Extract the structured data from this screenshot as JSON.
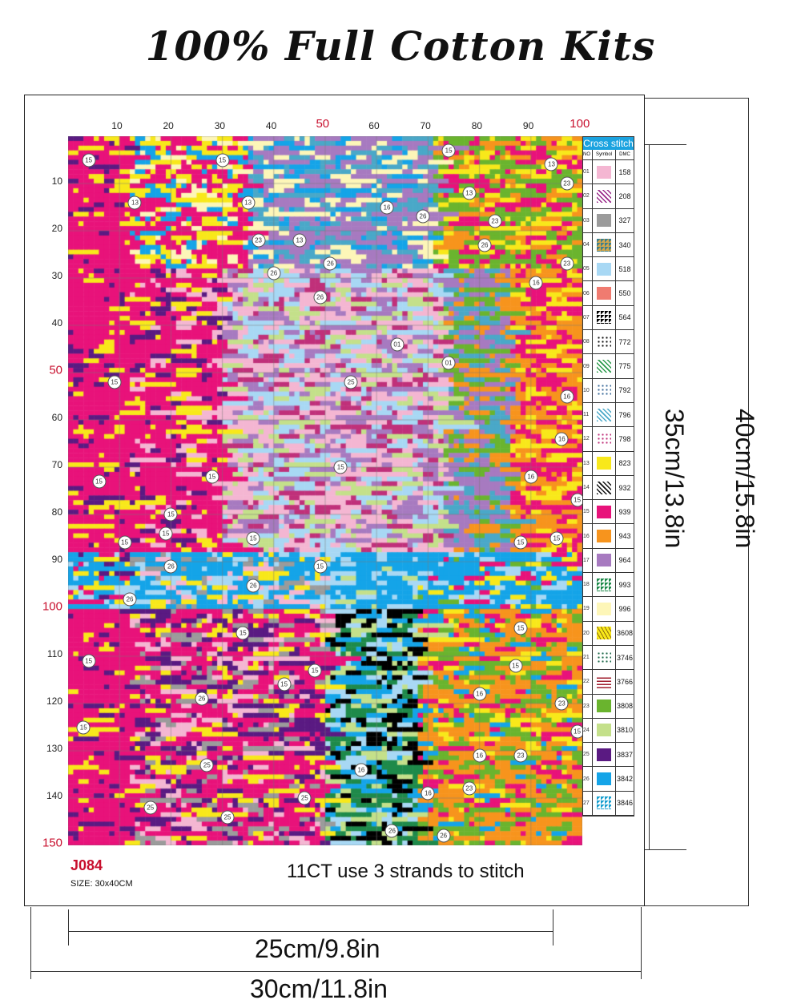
{
  "title": "100% Full Cotton Kits",
  "grid": {
    "columns": 100,
    "rows": 150,
    "column_labels": [
      "10",
      "20",
      "30",
      "40",
      "50",
      "60",
      "70",
      "80",
      "90",
      "100"
    ],
    "row_labels": [
      "10",
      "20",
      "30",
      "40",
      "50",
      "60",
      "70",
      "80",
      "90",
      "100",
      "110",
      "120",
      "130",
      "140",
      "150"
    ],
    "highlighted_labels": [
      "50",
      "100",
      "150"
    ],
    "markers": [
      [
        4,
        5,
        "15"
      ],
      [
        30,
        5,
        "15"
      ],
      [
        74,
        3,
        "15"
      ],
      [
        94,
        6,
        "13"
      ],
      [
        97,
        10,
        "23"
      ],
      [
        13,
        14,
        "13"
      ],
      [
        35,
        14,
        "13"
      ],
      [
        62,
        15,
        "16"
      ],
      [
        69,
        17,
        "26"
      ],
      [
        78,
        12,
        "13"
      ],
      [
        83,
        18,
        "23"
      ],
      [
        37,
        22,
        "23"
      ],
      [
        45,
        22,
        "13"
      ],
      [
        81,
        23,
        "26"
      ],
      [
        51,
        27,
        "26"
      ],
      [
        40,
        29,
        "26"
      ],
      [
        97,
        27,
        "23"
      ],
      [
        91,
        31,
        "16"
      ],
      [
        49,
        34,
        "26"
      ],
      [
        64,
        44,
        "01"
      ],
      [
        74,
        48,
        "01"
      ],
      [
        55,
        52,
        "25"
      ],
      [
        9,
        52,
        "15"
      ],
      [
        97,
        55,
        "16"
      ],
      [
        96,
        64,
        "16"
      ],
      [
        90,
        72,
        "16"
      ],
      [
        6,
        73,
        "15"
      ],
      [
        28,
        72,
        "15"
      ],
      [
        53,
        70,
        "15"
      ],
      [
        20,
        80,
        "15"
      ],
      [
        104,
        77,
        "15"
      ],
      [
        11,
        86,
        "15"
      ],
      [
        19,
        84,
        "15"
      ],
      [
        36,
        85,
        "15"
      ],
      [
        95,
        85,
        "15"
      ],
      [
        88,
        86,
        "15"
      ],
      [
        49,
        91,
        "15"
      ],
      [
        20,
        91,
        "26"
      ],
      [
        36,
        95,
        "26"
      ],
      [
        12,
        98,
        "26"
      ],
      [
        88,
        104,
        "15"
      ],
      [
        34,
        105,
        "15"
      ],
      [
        4,
        111,
        "15"
      ],
      [
        48,
        113,
        "15"
      ],
      [
        26,
        119,
        "26"
      ],
      [
        42,
        116,
        "15"
      ],
      [
        87,
        112,
        "15"
      ],
      [
        80,
        118,
        "16"
      ],
      [
        96,
        120,
        "23"
      ],
      [
        103,
        126,
        "15"
      ],
      [
        3,
        125,
        "15"
      ],
      [
        80,
        131,
        "16"
      ],
      [
        88,
        131,
        "23"
      ],
      [
        27,
        133,
        "25"
      ],
      [
        57,
        134,
        "16"
      ],
      [
        46,
        140,
        "25"
      ],
      [
        16,
        142,
        "25"
      ],
      [
        31,
        144,
        "25"
      ],
      [
        70,
        139,
        "16"
      ],
      [
        78,
        138,
        "23"
      ],
      [
        63,
        147,
        "26"
      ],
      [
        73,
        148,
        "26"
      ]
    ]
  },
  "legend": {
    "header": "Cross stitch",
    "col_no": "NO",
    "col_symbol": "Symbol",
    "col_dmc": "DMC",
    "rows": [
      {
        "no": "01",
        "dmc": "158",
        "color": "#f4b6d2",
        "pattern": "solid"
      },
      {
        "no": "02",
        "dmc": "208",
        "color": "#9a2a8a",
        "pattern": "diag"
      },
      {
        "no": "03",
        "dmc": "327",
        "color": "#9b9b9b",
        "pattern": "solid"
      },
      {
        "no": "04",
        "dmc": "340",
        "color": "#3d7f8c",
        "pattern": "tri",
        "bg": "#d6a74a"
      },
      {
        "no": "05",
        "dmc": "518",
        "color": "#a8d8f4",
        "pattern": "solid"
      },
      {
        "no": "06",
        "dmc": "550",
        "color": "#f07b70",
        "pattern": "solid"
      },
      {
        "no": "07",
        "dmc": "564",
        "color": "#000000",
        "pattern": "tri",
        "bg": "#ffffff"
      },
      {
        "no": "08",
        "dmc": "772",
        "color": "#111111",
        "pattern": "dots"
      },
      {
        "no": "09",
        "dmc": "775",
        "color": "#2a9a4a",
        "pattern": "diag"
      },
      {
        "no": "10",
        "dmc": "792",
        "color": "#3a6a9a",
        "pattern": "dots"
      },
      {
        "no": "11",
        "dmc": "796",
        "color": "#4aa8c8",
        "pattern": "diag"
      },
      {
        "no": "12",
        "dmc": "798",
        "color": "#c0307a",
        "pattern": "dots"
      },
      {
        "no": "13",
        "dmc": "823",
        "color": "#f8e81a",
        "pattern": "solid"
      },
      {
        "no": "14",
        "dmc": "932",
        "color": "#111111",
        "pattern": "diag"
      },
      {
        "no": "15",
        "dmc": "939",
        "color": "#e8127a",
        "pattern": "solid"
      },
      {
        "no": "16",
        "dmc": "943",
        "color": "#f7941d",
        "pattern": "solid"
      },
      {
        "no": "17",
        "dmc": "964",
        "color": "#a77ac0",
        "pattern": "solid"
      },
      {
        "no": "18",
        "dmc": "993",
        "color": "#1e8a4a",
        "pattern": "tri",
        "bg": "#ffffff"
      },
      {
        "no": "19",
        "dmc": "996",
        "color": "#fdf6b8",
        "pattern": "solid"
      },
      {
        "no": "20",
        "dmc": "3608",
        "color": "#8a6a10",
        "pattern": "wave",
        "bg": "#f8e81a"
      },
      {
        "no": "21",
        "dmc": "3746",
        "color": "#1e6a4a",
        "pattern": "dots"
      },
      {
        "no": "22",
        "dmc": "3766",
        "color": "#a01e2e",
        "pattern": "dash"
      },
      {
        "no": "23",
        "dmc": "3808",
        "color": "#6ab42e",
        "pattern": "solid"
      },
      {
        "no": "24",
        "dmc": "3810",
        "color": "#c4e08a",
        "pattern": "solid"
      },
      {
        "no": "25",
        "dmc": "3837",
        "color": "#5a1a82",
        "pattern": "solid"
      },
      {
        "no": "26",
        "dmc": "3842",
        "color": "#14a4e8",
        "pattern": "solid"
      },
      {
        "no": "27",
        "dmc": "3846",
        "color": "#1aa0d0",
        "pattern": "tri",
        "bg": "#ffffff"
      }
    ]
  },
  "footer": {
    "code": "J084",
    "size": "SIZE: 30x40CM",
    "note": "11CT use 3 strands to stitch"
  },
  "dimensions": {
    "inner_height": "35cm/13.8in",
    "outer_height": "40cm/15.8in",
    "inner_width": "25cm/9.8in",
    "outer_width": "30cm/11.8in"
  }
}
